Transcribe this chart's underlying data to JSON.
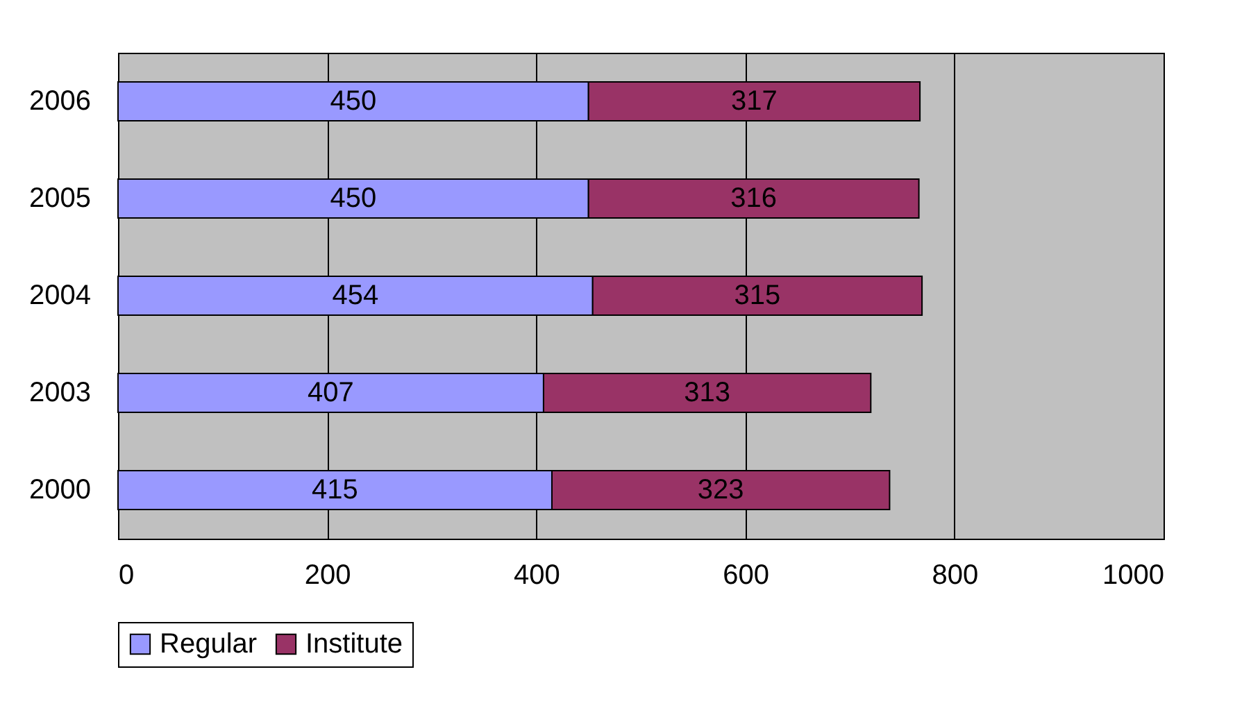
{
  "chart_data": {
    "type": "bar",
    "orientation": "horizontal",
    "stacked": true,
    "categories": [
      "2006",
      "2005",
      "2004",
      "2003",
      "2000"
    ],
    "series": [
      {
        "name": "Regular",
        "color": "#9999ff",
        "values": [
          450,
          450,
          454,
          407,
          415
        ]
      },
      {
        "name": "Institute",
        "color": "#993366",
        "values": [
          317,
          316,
          315,
          313,
          323
        ]
      }
    ],
    "xlim": [
      0,
      1000
    ],
    "xticks": [
      0,
      200,
      400,
      600,
      800,
      1000
    ],
    "grid": "x",
    "legend": "bottom",
    "data_labels": true
  }
}
